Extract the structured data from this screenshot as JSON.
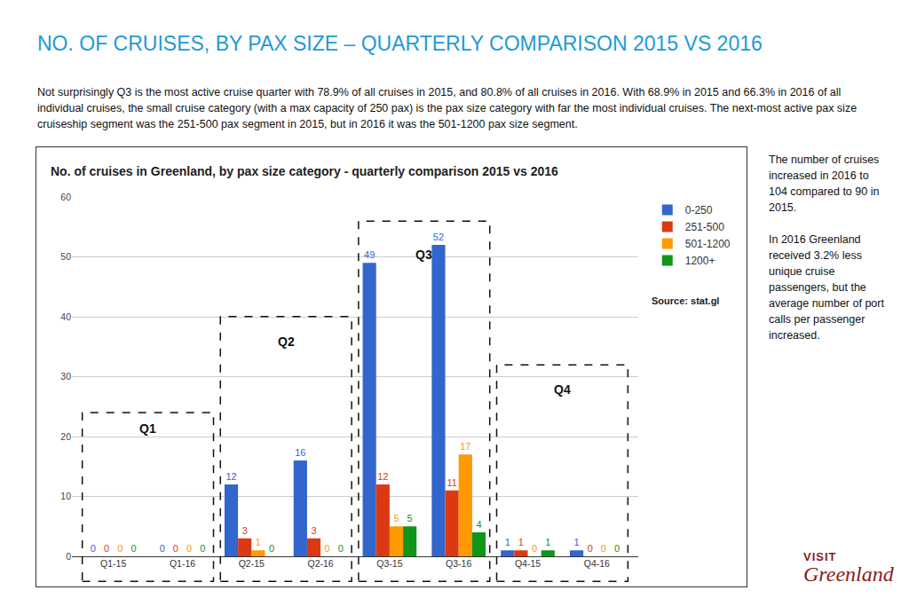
{
  "heading": "NO. OF CRUISES, BY PAX SIZE – QUARTERLY COMPARISON 2015 VS 2016",
  "paragraph": "Not surprisingly Q3 is the most active cruise quarter with 78.9% of all cruises in 2015, and 80.8% of all cruises in 2016. With 68.9% in 2015 and 66.3% in 2016 of all individual cruises, the small cruise category (with a max capacity of 250 pax) is the pax size category with far the most individual cruises. The next-most active pax size cruiseship segment was the 251-500 pax segment in 2015, but in 2016 it was the 501-1200 pax size segment.",
  "sidebar": [
    "The number of cruises increased in 2016 to 104 compared to 90 in 2015.",
    "In 2016 Greenland received 3.2% less unique cruise passengers, but the average number of port calls per passenger increased."
  ],
  "logo": [
    "VISIT",
    "Greenland"
  ],
  "chart_data": {
    "type": "bar",
    "title": "No. of cruises in Greenland, by pax size category - quarterly comparison 2015 vs 2016",
    "categories": [
      "Q1-15",
      "Q1-16",
      "Q2-15",
      "Q2-16",
      "Q3-15",
      "Q3-16",
      "Q4-15",
      "Q4-16"
    ],
    "series": [
      {
        "name": "0-250",
        "color": "#3366cc",
        "values": [
          0,
          0,
          12,
          16,
          49,
          52,
          1,
          1
        ]
      },
      {
        "name": "251-500",
        "color": "#dc3912",
        "values": [
          0,
          0,
          3,
          3,
          12,
          11,
          1,
          0
        ]
      },
      {
        "name": "501-1200",
        "color": "#ff9900",
        "values": [
          0,
          0,
          1,
          0,
          5,
          17,
          0,
          0
        ]
      },
      {
        "name": "1200+",
        "color": "#109618",
        "values": [
          0,
          0,
          0,
          0,
          5,
          4,
          1,
          0
        ]
      }
    ],
    "ylim": [
      0,
      60
    ],
    "yticks": [
      0,
      10,
      20,
      30,
      40,
      50,
      60
    ],
    "grid": true,
    "data_labels": true,
    "legend": "right",
    "groups": [
      "Q1",
      "Q2",
      "Q3",
      "Q4"
    ],
    "source": "Source: stat.gl"
  }
}
